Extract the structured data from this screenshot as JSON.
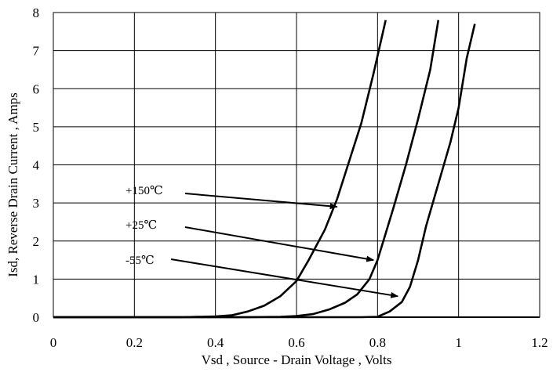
{
  "chart_data": {
    "type": "line",
    "title": "",
    "xlabel": "Vsd , Source - Drain Voltage , Volts",
    "ylabel": "Isd, Reverse Drain Current , Amps",
    "xlim": [
      0,
      1.2
    ],
    "ylim": [
      0,
      8
    ],
    "x_ticks": [
      0,
      0.2,
      0.4,
      0.6,
      0.8,
      1,
      1.2
    ],
    "x_tick_labels": [
      "0",
      "0.2",
      "0.4",
      "0.6",
      "0.8",
      "1",
      "1.2"
    ],
    "y_ticks": [
      0,
      1,
      2,
      3,
      4,
      5,
      6,
      7,
      8
    ],
    "y_tick_labels": [
      "0",
      "1",
      "2",
      "3",
      "4",
      "5",
      "6",
      "7",
      "8"
    ],
    "grid": true,
    "legend": "none",
    "series": [
      {
        "name": "+150℃",
        "points": [
          [
            0,
            0
          ],
          [
            0.32,
            0
          ],
          [
            0.4,
            0.02
          ],
          [
            0.44,
            0.05
          ],
          [
            0.48,
            0.15
          ],
          [
            0.52,
            0.3
          ],
          [
            0.56,
            0.55
          ],
          [
            0.6,
            0.95
          ],
          [
            0.63,
            1.5
          ],
          [
            0.67,
            2.3
          ],
          [
            0.7,
            3.1
          ],
          [
            0.73,
            4.1
          ],
          [
            0.76,
            5.1
          ],
          [
            0.79,
            6.4
          ],
          [
            0.82,
            7.8
          ]
        ]
      },
      {
        "name": "+25℃",
        "points": [
          [
            0,
            0
          ],
          [
            0.48,
            0
          ],
          [
            0.56,
            0.01
          ],
          [
            0.6,
            0.03
          ],
          [
            0.64,
            0.08
          ],
          [
            0.68,
            0.2
          ],
          [
            0.72,
            0.38
          ],
          [
            0.75,
            0.6
          ],
          [
            0.78,
            1.0
          ],
          [
            0.8,
            1.5
          ],
          [
            0.82,
            2.2
          ],
          [
            0.84,
            2.9
          ],
          [
            0.87,
            4.0
          ],
          [
            0.9,
            5.2
          ],
          [
            0.93,
            6.5
          ],
          [
            0.95,
            7.8
          ]
        ]
      },
      {
        "name": "-55℃",
        "points": [
          [
            0,
            0
          ],
          [
            0.76,
            0
          ],
          [
            0.8,
            0.01
          ],
          [
            0.83,
            0.15
          ],
          [
            0.86,
            0.4
          ],
          [
            0.88,
            0.8
          ],
          [
            0.9,
            1.5
          ],
          [
            0.92,
            2.4
          ],
          [
            0.95,
            3.5
          ],
          [
            0.98,
            4.6
          ],
          [
            1.0,
            5.5
          ],
          [
            1.02,
            6.8
          ],
          [
            1.04,
            7.7
          ]
        ]
      }
    ],
    "annotations": [
      {
        "text": "+150℃",
        "target_series": 0
      },
      {
        "text": "+25℃",
        "target_series": 1
      },
      {
        "text": "-55℃",
        "target_series": 2
      }
    ]
  }
}
